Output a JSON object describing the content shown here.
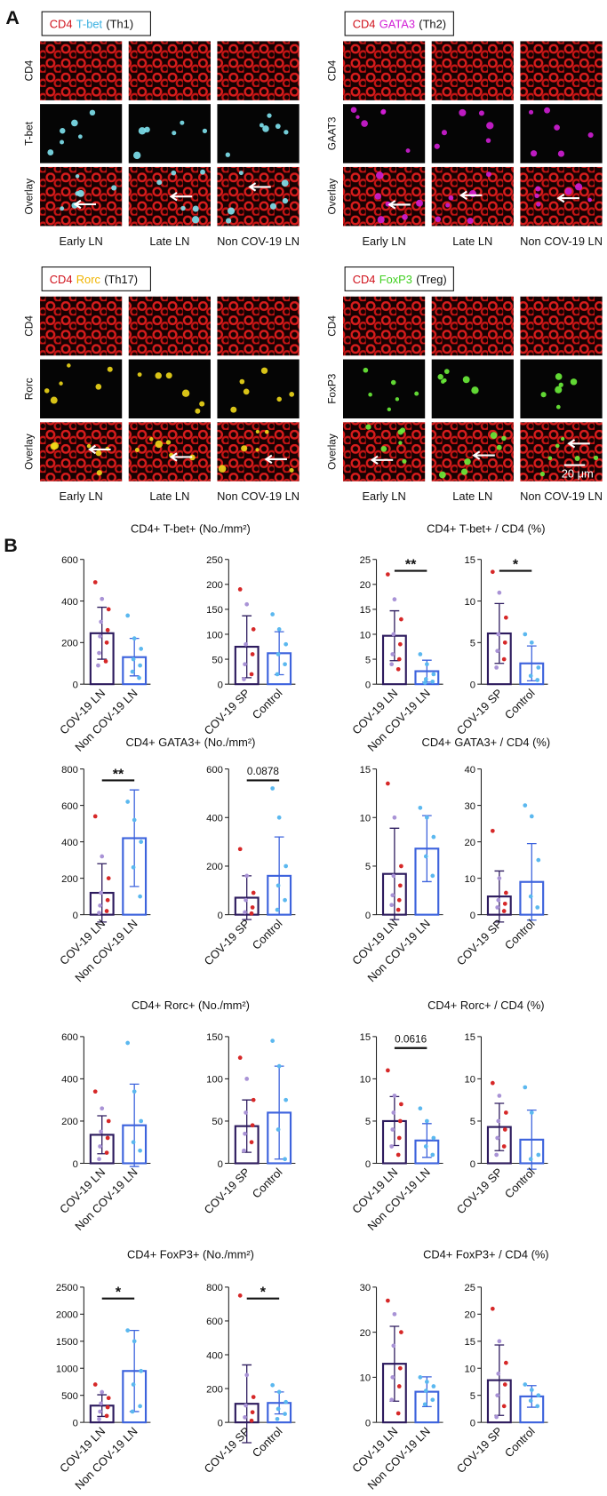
{
  "panel_a": {
    "label": "A",
    "scale_bar": "20 μm",
    "groups": [
      {
        "title": [
          "CD4",
          "T-bet",
          "(Th1)"
        ],
        "title_colors": [
          "#d0101a",
          "#3ab0e0",
          "#111"
        ],
        "rows": [
          "CD4",
          "T-bet",
          "Overlay"
        ],
        "columns": [
          "Early LN",
          "Late LN",
          "Non COV-19 LN"
        ],
        "marker_color": "#7fe3f0"
      },
      {
        "title": [
          "CD4",
          "GATA3",
          "(Th2)"
        ],
        "title_colors": [
          "#d0101a",
          "#d21ed6",
          "#111"
        ],
        "rows": [
          "CD4",
          "GAAT3",
          "Overlay"
        ],
        "columns": [
          "Early LN",
          "Late LN",
          "Non COV-19 LN"
        ],
        "marker_color": "#d21ed6"
      },
      {
        "title": [
          "CD4",
          "Rorc",
          "(Th17)"
        ],
        "title_colors": [
          "#d0101a",
          "#f0b400",
          "#111"
        ],
        "rows": [
          "CD4",
          "Rorc",
          "Overlay"
        ],
        "columns": [
          "Early LN",
          "Late LN",
          "Non COV-19 LN"
        ],
        "marker_color": "#f0d81a"
      },
      {
        "title": [
          "CD4",
          "FoxP3",
          "(Treg)"
        ],
        "title_colors": [
          "#d0101a",
          "#40d020",
          "#111"
        ],
        "rows": [
          "CD4",
          "FoxP3",
          "Overlay"
        ],
        "columns": [
          "Early LN",
          "Late LN",
          "Non COV-19 LN"
        ],
        "marker_color": "#6cf03a"
      }
    ]
  },
  "panel_b": {
    "label": "B",
    "figure_titles": [
      "CD4+ T-bet+ (No./mm²)",
      "CD4+ T-bet+ / CD4 (%)",
      "CD4+ GATA3+ (No./mm²)",
      "CD4+ GATA3+ / CD4 (%)",
      "CD4+ Rorc+ (No./mm²)",
      "CD4+ Rorc+ / CD4 (%)",
      "CD4+ FoxP3+ (No./mm²)",
      "CD4+ FoxP3+ / CD4 (%)"
    ],
    "bar_colors": [
      "#2d1b5e",
      "#3d63dd"
    ],
    "point_colors": [
      [
        "#d62828",
        "#a993d6"
      ],
      [
        "#5bb8ef"
      ]
    ]
  },
  "chart_data": [
    {
      "type": "bar",
      "categories": [
        "COV-19 LN",
        "Non COV-19 LN"
      ],
      "values": [
        245,
        130
      ],
      "errors": [
        125,
        90
      ],
      "points": [
        [
          490,
          410,
          360,
          300,
          260,
          230,
          200,
          150,
          110,
          90
        ],
        [
          330,
          220,
          170,
          120,
          90,
          60,
          30
        ]
      ],
      "ylim": [
        0,
        600
      ],
      "yticks": [
        0,
        200,
        400,
        600
      ]
    },
    {
      "type": "bar",
      "categories": [
        "COV-19 SP",
        "Control"
      ],
      "values": [
        75,
        62
      ],
      "errors": [
        62,
        43
      ],
      "points": [
        [
          190,
          160,
          110,
          80,
          60,
          40,
          20,
          10
        ],
        [
          140,
          110,
          80,
          60,
          40,
          20
        ]
      ],
      "ylim": [
        0,
        250
      ],
      "yticks": [
        0,
        50,
        100,
        150,
        200,
        250
      ]
    },
    {
      "type": "bar",
      "categories": [
        "COV-19 LN",
        "Non COV-19 LN"
      ],
      "values": [
        9.7,
        2.6
      ],
      "errors": [
        5,
        2.2
      ],
      "points": [
        [
          22,
          17,
          13,
          10,
          8,
          6,
          5,
          4,
          3
        ],
        [
          6,
          4,
          2,
          1,
          0.5,
          0.3
        ]
      ],
      "ylim": [
        0,
        25
      ],
      "yticks": [
        0,
        5,
        10,
        15,
        20,
        25
      ],
      "significance": "**"
    },
    {
      "type": "bar",
      "categories": [
        "COV-19 SP",
        "Control"
      ],
      "values": [
        6.1,
        2.5
      ],
      "errors": [
        3.6,
        2.1
      ],
      "points": [
        [
          13.5,
          11,
          8,
          6,
          5,
          4,
          3,
          2
        ],
        [
          6,
          5,
          2,
          1,
          0.5
        ]
      ],
      "ylim": [
        0,
        15
      ],
      "yticks": [
        0,
        5,
        10,
        15
      ],
      "significance": "*"
    },
    {
      "type": "bar",
      "categories": [
        "COV-19 LN",
        "Non COV-19 LN"
      ],
      "values": [
        120,
        420
      ],
      "errors": [
        160,
        265
      ],
      "points": [
        [
          540,
          320,
          200,
          120,
          80,
          50,
          20,
          10
        ],
        [
          620,
          520,
          400,
          260,
          100
        ]
      ],
      "ylim": [
        0,
        800
      ],
      "yticks": [
        0,
        200,
        400,
        600,
        800
      ],
      "significance": "**"
    },
    {
      "type": "bar",
      "categories": [
        "COV-19 SP",
        "Control"
      ],
      "values": [
        70,
        160
      ],
      "errors": [
        90,
        160
      ],
      "points": [
        [
          270,
          160,
          90,
          60,
          30,
          10,
          5
        ],
        [
          520,
          400,
          200,
          120,
          60,
          20
        ]
      ],
      "ylim": [
        0,
        600
      ],
      "yticks": [
        0,
        200,
        400,
        600
      ],
      "significance": "0.0878"
    },
    {
      "type": "bar",
      "categories": [
        "COV-19 LN",
        "Non COV-19 LN"
      ],
      "values": [
        4.2,
        6.8
      ],
      "errors": [
        4.7,
        3.4
      ],
      "points": [
        [
          13.5,
          10,
          5,
          4,
          3,
          2,
          1.5,
          1,
          0.5
        ],
        [
          11,
          10,
          8,
          6,
          4
        ]
      ],
      "ylim": [
        0,
        15
      ],
      "yticks": [
        0,
        5,
        10,
        15
      ]
    },
    {
      "type": "bar",
      "categories": [
        "COV-19 SP",
        "Control"
      ],
      "values": [
        5,
        9
      ],
      "errors": [
        7,
        10.5
      ],
      "points": [
        [
          23,
          10,
          6,
          4,
          3,
          2,
          1
        ],
        [
          30,
          27,
          15,
          5,
          2
        ]
      ],
      "ylim": [
        0,
        40
      ],
      "yticks": [
        0,
        10,
        20,
        30,
        40
      ]
    },
    {
      "type": "bar",
      "categories": [
        "COV-19 LN",
        "Non COV-19 LN"
      ],
      "values": [
        135,
        180
      ],
      "errors": [
        90,
        195
      ],
      "points": [
        [
          340,
          260,
          200,
          150,
          120,
          80,
          50,
          20
        ],
        [
          570,
          340,
          200,
          100,
          60
        ]
      ],
      "ylim": [
        0,
        600
      ],
      "yticks": [
        0,
        200,
        400,
        600
      ]
    },
    {
      "type": "bar",
      "categories": [
        "COV-19 SP",
        "Control"
      ],
      "values": [
        44,
        60
      ],
      "errors": [
        31,
        55
      ],
      "points": [
        [
          125,
          100,
          75,
          60,
          45,
          35,
          25,
          15
        ],
        [
          145,
          115,
          75,
          40,
          5
        ]
      ],
      "ylim": [
        0,
        150
      ],
      "yticks": [
        0,
        50,
        100,
        150
      ]
    },
    {
      "type": "bar",
      "categories": [
        "COV-19 LN",
        "Non COV-19 LN"
      ],
      "values": [
        5,
        2.7
      ],
      "errors": [
        2.9,
        2
      ],
      "points": [
        [
          11,
          8,
          7,
          6,
          5,
          4,
          3,
          2,
          1
        ],
        [
          6.5,
          5,
          3,
          2,
          1
        ]
      ],
      "ylim": [
        0,
        15
      ],
      "yticks": [
        0,
        5,
        10,
        15
      ],
      "significance": "0.0616"
    },
    {
      "type": "bar",
      "categories": [
        "COV-19 SP",
        "Control"
      ],
      "values": [
        4.3,
        2.8
      ],
      "errors": [
        2.8,
        3.5
      ],
      "points": [
        [
          9.5,
          8,
          6,
          5,
          4,
          3,
          2,
          1
        ],
        [
          9,
          6,
          1,
          0.5
        ]
      ],
      "ylim": [
        0,
        15
      ],
      "yticks": [
        0,
        5,
        10,
        15
      ]
    },
    {
      "type": "bar",
      "categories": [
        "COV-19 LN",
        "Non COV-19 LN"
      ],
      "values": [
        310,
        950
      ],
      "errors": [
        200,
        750
      ],
      "points": [
        [
          700,
          560,
          450,
          350,
          280,
          200,
          120,
          60
        ],
        [
          1700,
          1500,
          950,
          700,
          300,
          200
        ]
      ],
      "ylim": [
        0,
        2500
      ],
      "yticks": [
        0,
        500,
        1000,
        1500,
        2000,
        2500
      ],
      "significance": "*"
    },
    {
      "type": "bar",
      "categories": [
        "COV-19 SP",
        "Control"
      ],
      "values": [
        110,
        115
      ],
      "errors": [
        230,
        65
      ],
      "points": [
        [
          750,
          280,
          150,
          100,
          60,
          30,
          10
        ],
        [
          220,
          180,
          120,
          80,
          50,
          20
        ]
      ],
      "ylim": [
        0,
        800
      ],
      "yticks": [
        0,
        200,
        400,
        600,
        800
      ],
      "significance": "*"
    },
    {
      "type": "bar",
      "categories": [
        "COV-19 LN",
        "Non COV-19 LN"
      ],
      "values": [
        13,
        6.8
      ],
      "errors": [
        8.3,
        3.3
      ],
      "points": [
        [
          27,
          24,
          20,
          17,
          12,
          10,
          8,
          5,
          2
        ],
        [
          10,
          9,
          8,
          7,
          5,
          4
        ]
      ],
      "ylim": [
        0,
        30
      ],
      "yticks": [
        0,
        10,
        20,
        30
      ]
    },
    {
      "type": "bar",
      "categories": [
        "COV-19 SP",
        "Control"
      ],
      "values": [
        7.8,
        4.8
      ],
      "errors": [
        6.5,
        2
      ],
      "points": [
        [
          21,
          15,
          11,
          9,
          7,
          5,
          3,
          1
        ],
        [
          7,
          6,
          5,
          4,
          3
        ]
      ],
      "ylim": [
        0,
        25
      ],
      "yticks": [
        0,
        5,
        10,
        15,
        20,
        25
      ]
    }
  ]
}
